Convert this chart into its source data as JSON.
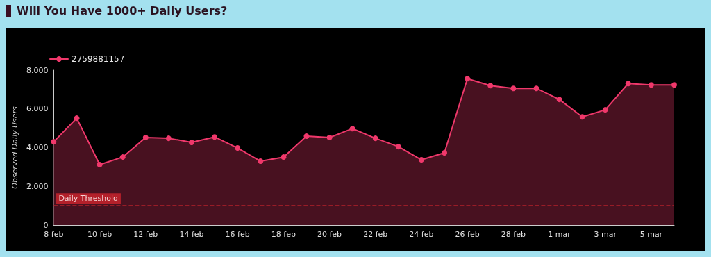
{
  "chart_data": {
    "type": "area",
    "title": "Will You Have 1000+ Daily Users?",
    "ylabel": "Observed Daily Users",
    "categories": [
      "8 feb",
      null,
      "10 feb",
      null,
      "12 feb",
      null,
      "14 feb",
      null,
      "16 feb",
      null,
      "18 feb",
      null,
      "20 feb",
      null,
      "22 feb",
      null,
      "24 feb",
      null,
      "26 feb",
      null,
      "28 feb",
      null,
      "1 mar",
      null,
      "3 mar",
      null,
      "5 mar",
      null
    ],
    "series": [
      {
        "name": "2759881157",
        "color": "#f0386b",
        "values": [
          4300,
          5520,
          3120,
          3510,
          4520,
          4480,
          4270,
          4550,
          3980,
          3300,
          3510,
          4590,
          4520,
          4980,
          4480,
          4050,
          3370,
          3730,
          7560,
          7200,
          7060,
          7060,
          6490,
          5590,
          5950,
          7310,
          7240,
          7240
        ]
      }
    ],
    "ylim": [
      0,
      8000
    ],
    "yticks": [
      {
        "value": 0,
        "label": "0"
      },
      {
        "value": 2000,
        "label": "2.000"
      },
      {
        "value": 4000,
        "label": "4.000"
      },
      {
        "value": 6000,
        "label": "6.000"
      },
      {
        "value": 8000,
        "label": "8.000"
      }
    ],
    "ref_lines": [
      {
        "axis": "y",
        "value": 1000,
        "label": "Daily Threshold",
        "color": "#b3202a",
        "line_style": "dashed"
      }
    ],
    "grid": false,
    "legend": "top left",
    "marker": "circle",
    "line_style": "solid"
  }
}
